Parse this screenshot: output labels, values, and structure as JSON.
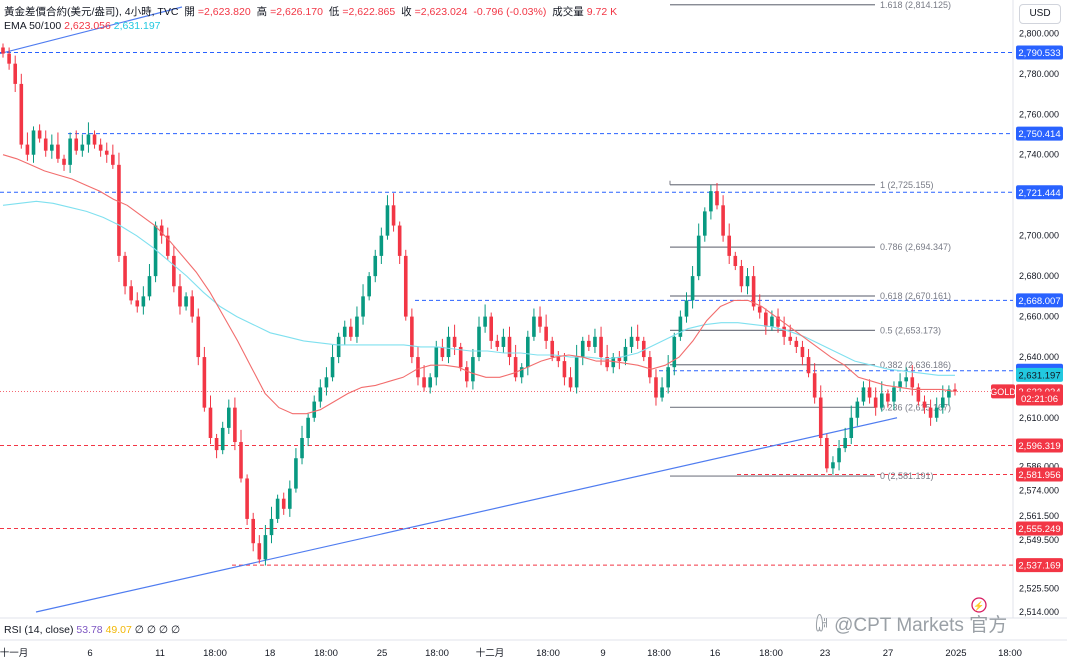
{
  "header": {
    "symbol": "黃金差價合約(美元/盎司), 4小時, TVC",
    "open_label": "開",
    "open": "=2,623.820",
    "high_label": "高",
    "high": "=2,626.170",
    "low_label": "低",
    "low": "=2,622.865",
    "close_label": "收",
    "close": "=2,623.024",
    "change": "-0.796 (-0.03%)",
    "volume_label": "成交量",
    "volume": "9.72 K"
  },
  "ema": {
    "label": "EMA 50/100",
    "ema50": "2,623.056",
    "ema100": "2,631.197"
  },
  "rsi": {
    "label": "RSI (14, close)",
    "v1": "53.78",
    "v2": "49.07",
    "rest": "∅ ∅ ∅ ∅"
  },
  "currency": "USD",
  "watermark": "ꁽ @CPT Markets 官方",
  "chart_data": {
    "type": "candlestick",
    "y_axis": {
      "min": 2514,
      "max": 2814,
      "ticks": [
        2514.0,
        2525.5,
        2537.0,
        2549.5,
        2561.5,
        2574.0,
        2586.0,
        2598.0,
        2610.0,
        2620.0,
        2640.0,
        2660.0,
        2680.0,
        2700.0,
        2720.0,
        2740.0,
        2760.0,
        2780.0,
        2800.0
      ]
    },
    "x_axis_labels": [
      "十一月",
      "6",
      "11",
      "18:00",
      "18",
      "18:00",
      "25",
      "18:00",
      "十二月",
      "18:00",
      "9",
      "18:00",
      "16",
      "18:00",
      "23",
      "27",
      "2025",
      "18:00"
    ],
    "price_levels": [
      {
        "price": 2790.533,
        "label": "2,790.533",
        "color": "#2962ff"
      },
      {
        "price": 2750.414,
        "label": "2,750.414",
        "color": "#2962ff"
      },
      {
        "price": 2721.444,
        "label": "2,721.444",
        "color": "#2962ff"
      },
      {
        "price": 2668.007,
        "label": "2,668.007",
        "color": "#2962ff"
      },
      {
        "price": 2633.204,
        "label": "2,633.204",
        "color": "#2962ff"
      },
      {
        "price": 2596.319,
        "label": "2,596.319",
        "color": "#f23645"
      },
      {
        "price": 2581.956,
        "label": "2,581.956",
        "color": "#f23645"
      },
      {
        "price": 2555.249,
        "label": "2,555.249",
        "color": "#f23645"
      },
      {
        "price": 2537.169,
        "label": "2,537.169",
        "color": "#f23645"
      }
    ],
    "tags": [
      {
        "price": 2631.197,
        "label": "2,631.197",
        "color": "#22c8e0",
        "text_color": "#131722"
      },
      {
        "price": 2623.056,
        "label": "2,623.056",
        "color": "#f23645",
        "text_color": "#ffffff"
      },
      {
        "price": 2623.024,
        "label": "2,623.024",
        "color": "#f23645",
        "text_color": "#ffffff"
      },
      {
        "price": 2619.5,
        "label": "02:21:06",
        "color": "#f23645",
        "text_color": "#ffffff"
      }
    ],
    "symbol_tag": "GOLD",
    "fibonacci": {
      "high": 2725.155,
      "low": 2581.191,
      "levels": [
        {
          "ratio": "1.618",
          "price": 2814.125,
          "label": "1.618 (2,814.125)"
        },
        {
          "ratio": "1",
          "price": 2725.155,
          "label": "1 (2,725.155)"
        },
        {
          "ratio": "0.786",
          "price": 2694.347,
          "label": "0.786 (2,694.347)"
        },
        {
          "ratio": "0.618",
          "price": 2670.161,
          "label": "0.618 (2,670.161)"
        },
        {
          "ratio": "0.5",
          "price": 2653.173,
          "label": "0.5 (2,653.173)"
        },
        {
          "ratio": "0.382",
          "price": 2636.186,
          "label": "0.382 (2,636.186)"
        },
        {
          "ratio": "0.236",
          "price": 2615.167,
          "label": "0.236 (2,615.167)"
        },
        {
          "ratio": "0",
          "price": 2581.191,
          "label": "0 (2,581.191)"
        }
      ]
    },
    "ohlc_close_path": [
      2790,
      2785,
      2775,
      2745,
      2740,
      2752,
      2748,
      2742,
      2745,
      2738,
      2735,
      2748,
      2742,
      2745,
      2750,
      2745,
      2742,
      2740,
      2735,
      2690,
      2675,
      2668,
      2665,
      2670,
      2680,
      2705,
      2700,
      2690,
      2675,
      2665,
      2670,
      2660,
      2640,
      2615,
      2600,
      2594,
      2605,
      2615,
      2598,
      2580,
      2560,
      2548,
      2540,
      2552,
      2560,
      2570,
      2565,
      2575,
      2590,
      2600,
      2610,
      2618,
      2625,
      2630,
      2640,
      2650,
      2655,
      2650,
      2660,
      2670,
      2680,
      2690,
      2700,
      2715,
      2705,
      2690,
      2660,
      2640,
      2630,
      2625,
      2630,
      2645,
      2640,
      2650,
      2645,
      2635,
      2628,
      2640,
      2655,
      2660,
      2648,
      2645,
      2650,
      2640,
      2630,
      2635,
      2650,
      2660,
      2655,
      2648,
      2640,
      2638,
      2630,
      2625,
      2640,
      2648,
      2645,
      2650,
      2640,
      2635,
      2640,
      2638,
      2645,
      2650,
      2648,
      2640,
      2630,
      2620,
      2625,
      2635,
      2650,
      2660,
      2668,
      2680,
      2700,
      2712,
      2722,
      2715,
      2700,
      2690,
      2685,
      2675,
      2680,
      2665,
      2662,
      2655,
      2660,
      2655,
      2650,
      2648,
      2645,
      2640,
      2632,
      2620,
      2600,
      2585,
      2588,
      2595,
      2600,
      2610,
      2618,
      2625,
      2620,
      2615,
      2622,
      2618,
      2625,
      2628,
      2630,
      2625,
      2618,
      2615,
      2610,
      2615,
      2620,
      2624,
      2623
    ],
    "ema50_path": [
      2740,
      2738,
      2735,
      2732,
      2730,
      2728,
      2725,
      2722,
      2718,
      2715,
      2710,
      2705,
      2698,
      2690,
      2682,
      2672,
      2660,
      2648,
      2635,
      2622,
      2615,
      2612,
      2612,
      2614,
      2618,
      2622,
      2625,
      2626,
      2628,
      2630,
      2634,
      2636,
      2636,
      2635,
      2632,
      2630,
      2630,
      2632,
      2635,
      2638,
      2640,
      2641,
      2640,
      2638,
      2638,
      2637,
      2636,
      2634,
      2636,
      2640,
      2648,
      2658,
      2665,
      2668,
      2668,
      2665,
      2660,
      2655,
      2650,
      2645,
      2640,
      2636,
      2630,
      2628,
      2626,
      2625,
      2624,
      2624,
      2624,
      2623
    ],
    "ema100_path": [
      2715,
      2716,
      2717,
      2716,
      2714,
      2712,
      2709,
      2705,
      2700,
      2694,
      2687,
      2680,
      2672,
      2665,
      2660,
      2656,
      2652,
      2650,
      2648,
      2647,
      2646,
      2646,
      2646,
      2646,
      2646,
      2645,
      2645,
      2644,
      2643,
      2643,
      2642,
      2642,
      2641,
      2641,
      2640,
      2640,
      2639,
      2640,
      2642,
      2646,
      2650,
      2654,
      2656,
      2657,
      2657,
      2656,
      2655,
      2653,
      2650,
      2646,
      2642,
      2638,
      2636,
      2634,
      2633,
      2632,
      2631,
      2631
    ],
    "trendlines": [
      {
        "from": [
          2790,
          "start"
        ],
        "to": [
          2814,
          "mid"
        ],
        "color": "#4f7cf0"
      },
      {
        "from": [
          2514,
          "start"
        ],
        "to": [
          2610,
          "late"
        ],
        "color": "#4f7cf0"
      }
    ]
  }
}
